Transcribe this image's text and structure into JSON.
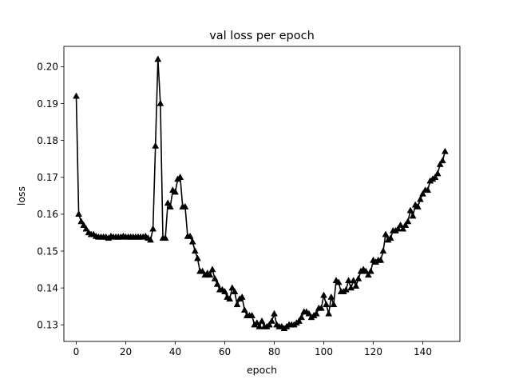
{
  "chart_data": {
    "type": "line",
    "title": "val loss per epoch",
    "xlabel": "epoch",
    "ylabel": "loss",
    "xlim": [
      -5,
      155
    ],
    "ylim": [
      0.1255,
      0.2055
    ],
    "xticks": [
      0,
      20,
      40,
      60,
      80,
      100,
      120,
      140
    ],
    "yticks": [
      0.13,
      0.14,
      0.15,
      0.16,
      0.17,
      0.18,
      0.19,
      0.2
    ],
    "ytick_labels": [
      "0.13",
      "0.14",
      "0.15",
      "0.16",
      "0.17",
      "0.18",
      "0.19",
      "0.20"
    ],
    "grid": false,
    "legend": null,
    "series": [
      {
        "color": "#000000",
        "marker": "triangle-up",
        "x": [
          0,
          1,
          2,
          3,
          4,
          5,
          6,
          7,
          8,
          9,
          10,
          11,
          12,
          13,
          14,
          15,
          16,
          17,
          18,
          19,
          20,
          21,
          22,
          23,
          24,
          25,
          26,
          27,
          28,
          29,
          30,
          31,
          32,
          33,
          34,
          35,
          36,
          37,
          38,
          39,
          40,
          41,
          42,
          43,
          44,
          45,
          46,
          47,
          48,
          49,
          50,
          51,
          52,
          53,
          54,
          55,
          56,
          57,
          58,
          59,
          60,
          61,
          62,
          63,
          64,
          65,
          66,
          67,
          68,
          69,
          70,
          71,
          72,
          73,
          74,
          75,
          76,
          77,
          78,
          79,
          80,
          81,
          82,
          83,
          84,
          85,
          86,
          87,
          88,
          89,
          90,
          91,
          92,
          93,
          94,
          95,
          96,
          97,
          98,
          99,
          100,
          101,
          102,
          103,
          104,
          105,
          106,
          107,
          108,
          109,
          110,
          111,
          112,
          113,
          114,
          115,
          116,
          117,
          118,
          119,
          120,
          121,
          122,
          123,
          124,
          125,
          126,
          127,
          128,
          129,
          130,
          131,
          132,
          133,
          134,
          135,
          136,
          137,
          138,
          139,
          140,
          141,
          142,
          143,
          144,
          145,
          146,
          147,
          148,
          149
        ],
        "y": [
          0.192,
          0.16,
          0.158,
          0.157,
          0.156,
          0.155,
          0.1545,
          0.1545,
          0.154,
          0.1538,
          0.1538,
          0.1538,
          0.1538,
          0.1535,
          0.154,
          0.1538,
          0.1538,
          0.1538,
          0.1538,
          0.154,
          0.1538,
          0.1538,
          0.1538,
          0.1538,
          0.1538,
          0.1538,
          0.1538,
          0.1538,
          0.154,
          0.1535,
          0.153,
          0.156,
          0.1785,
          0.202,
          0.19,
          0.1535,
          0.1535,
          0.163,
          0.162,
          0.1665,
          0.166,
          0.1695,
          0.17,
          0.162,
          0.162,
          0.154,
          0.154,
          0.1525,
          0.15,
          0.148,
          0.1445,
          0.1445,
          0.1435,
          0.144,
          0.1435,
          0.145,
          0.1425,
          0.141,
          0.1395,
          0.1395,
          0.139,
          0.1375,
          0.137,
          0.14,
          0.139,
          0.1355,
          0.137,
          0.1375,
          0.134,
          0.1325,
          0.1325,
          0.1325,
          0.13,
          0.1305,
          0.1295,
          0.131,
          0.1295,
          0.1295,
          0.13,
          0.131,
          0.133,
          0.13,
          0.1295,
          0.1295,
          0.129,
          0.1295,
          0.13,
          0.13,
          0.13,
          0.1305,
          0.131,
          0.132,
          0.1335,
          0.1335,
          0.133,
          0.132,
          0.1325,
          0.133,
          0.1345,
          0.1345,
          0.138,
          0.1355,
          0.133,
          0.1375,
          0.1355,
          0.142,
          0.1415,
          0.139,
          0.139,
          0.1395,
          0.142,
          0.14,
          0.142,
          0.1405,
          0.1425,
          0.1445,
          0.145,
          0.1445,
          0.1435,
          0.1445,
          0.1475,
          0.147,
          0.1475,
          0.1475,
          0.15,
          0.1545,
          0.153,
          0.1535,
          0.1555,
          0.1555,
          0.156,
          0.157,
          0.156,
          0.157,
          0.158,
          0.161,
          0.1595,
          0.1625,
          0.162,
          0.164,
          0.1655,
          0.1665,
          0.1665,
          0.169,
          0.1695,
          0.17,
          0.171,
          0.1735,
          0.1745,
          0.177
        ]
      }
    ]
  }
}
